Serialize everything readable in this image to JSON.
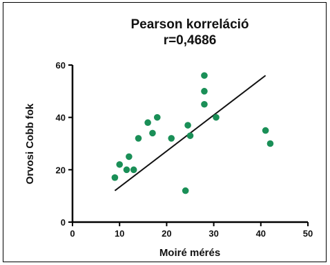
{
  "chart_data": {
    "type": "scatter",
    "title": "Pearson korreláció",
    "subtitle": "r=0,4686",
    "xlabel": "Moiré mérés",
    "ylabel": "Orvosi Cobb fok",
    "xlim": [
      0,
      50
    ],
    "ylim": [
      0,
      60
    ],
    "x_ticks": [
      "0",
      "10",
      "20",
      "30",
      "40",
      "50"
    ],
    "y_ticks": [
      "0",
      "20",
      "40",
      "60"
    ],
    "grid": false,
    "point_color": "#1a8f57",
    "line_color": "#111111",
    "points": [
      {
        "x": 9,
        "y": 17
      },
      {
        "x": 10,
        "y": 22
      },
      {
        "x": 11.5,
        "y": 20
      },
      {
        "x": 12,
        "y": 25
      },
      {
        "x": 13,
        "y": 20
      },
      {
        "x": 14,
        "y": 32
      },
      {
        "x": 16,
        "y": 38
      },
      {
        "x": 17,
        "y": 34
      },
      {
        "x": 18,
        "y": 40
      },
      {
        "x": 21,
        "y": 32
      },
      {
        "x": 24,
        "y": 12
      },
      {
        "x": 24.5,
        "y": 37
      },
      {
        "x": 25,
        "y": 33
      },
      {
        "x": 28,
        "y": 56
      },
      {
        "x": 28,
        "y": 50
      },
      {
        "x": 28,
        "y": 45
      },
      {
        "x": 30.5,
        "y": 40
      },
      {
        "x": 41,
        "y": 35
      },
      {
        "x": 42,
        "y": 30
      }
    ],
    "trendline": {
      "x": [
        9,
        41
      ],
      "y": [
        12,
        56
      ]
    }
  }
}
